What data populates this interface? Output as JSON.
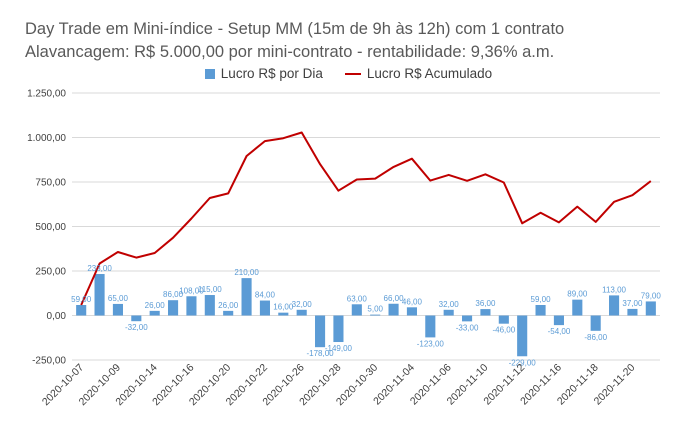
{
  "title_line1": "Day Trade em Mini-índice - Setup MM (15m de 9h às 12h) com 1 contrato",
  "title_line2": "Alavancagem: R$ 5.000,00 por mini-contrato - rentabilidade: 9,36% a.m.",
  "colors": {
    "bar": "#5b9bd5",
    "line": "#c00000",
    "grid": "#d9d9d9",
    "text": "#404040"
  },
  "chart_data": {
    "type": "bar",
    "title": "",
    "legend": {
      "placement": "top",
      "entries": [
        "Lucro R$ por Dia",
        "Lucro R$ Acumulado"
      ]
    },
    "y_ticks": [
      "-250,00",
      "0,00",
      "250,00",
      "500,00",
      "750,00",
      "1.000,00",
      "1.250,00"
    ],
    "ylim": [
      -250,
      1250
    ],
    "grid": true,
    "x_tick_labels": [
      "2020-10-07",
      "2020-10-09",
      "2020-10-14",
      "2020-10-16",
      "2020-10-20",
      "2020-10-22",
      "2020-10-26",
      "2020-10-28",
      "2020-10-30",
      "2020-11-04",
      "2020-11-06",
      "2020-11-10",
      "2020-11-12",
      "2020-11-16",
      "2020-11-18",
      "2020-11-20"
    ],
    "series": [
      {
        "name": "Lucro R$ por Dia",
        "type": "bar",
        "values": [
          59,
          233,
          65,
          -32,
          26,
          86,
          108,
          115,
          26,
          210,
          84,
          16,
          32,
          -178,
          -149,
          63,
          5,
          66,
          46,
          -123,
          32,
          -33,
          36,
          -46,
          -229,
          59,
          -54,
          89,
          -86,
          113,
          37,
          79
        ],
        "labels": [
          "59,00",
          "233,00",
          "65,00",
          "-32,00",
          "26,00",
          "86,00",
          "108,00",
          "115,00",
          "26,00",
          "210,00",
          "84,00",
          "16,00",
          "32,00",
          "-178,00",
          "-149,00",
          "63,00",
          "5,00",
          "66,00",
          "46,00",
          "-123,00",
          "32,00",
          "-33,00",
          "36,00",
          "-46,00",
          "-229,00",
          "59,00",
          "-54,00",
          "89,00",
          "-86,00",
          "113,00",
          "37,00",
          "79,00"
        ]
      },
      {
        "name": "Lucro R$ Acumulado",
        "type": "line",
        "values": [
          59,
          292,
          357,
          325,
          351,
          437,
          545,
          660,
          686,
          896,
          980,
          996,
          1028,
          850,
          701,
          764,
          769,
          835,
          881,
          758,
          790,
          757,
          793,
          747,
          518,
          577,
          523,
          612,
          526,
          639,
          676,
          755
        ]
      }
    ]
  }
}
